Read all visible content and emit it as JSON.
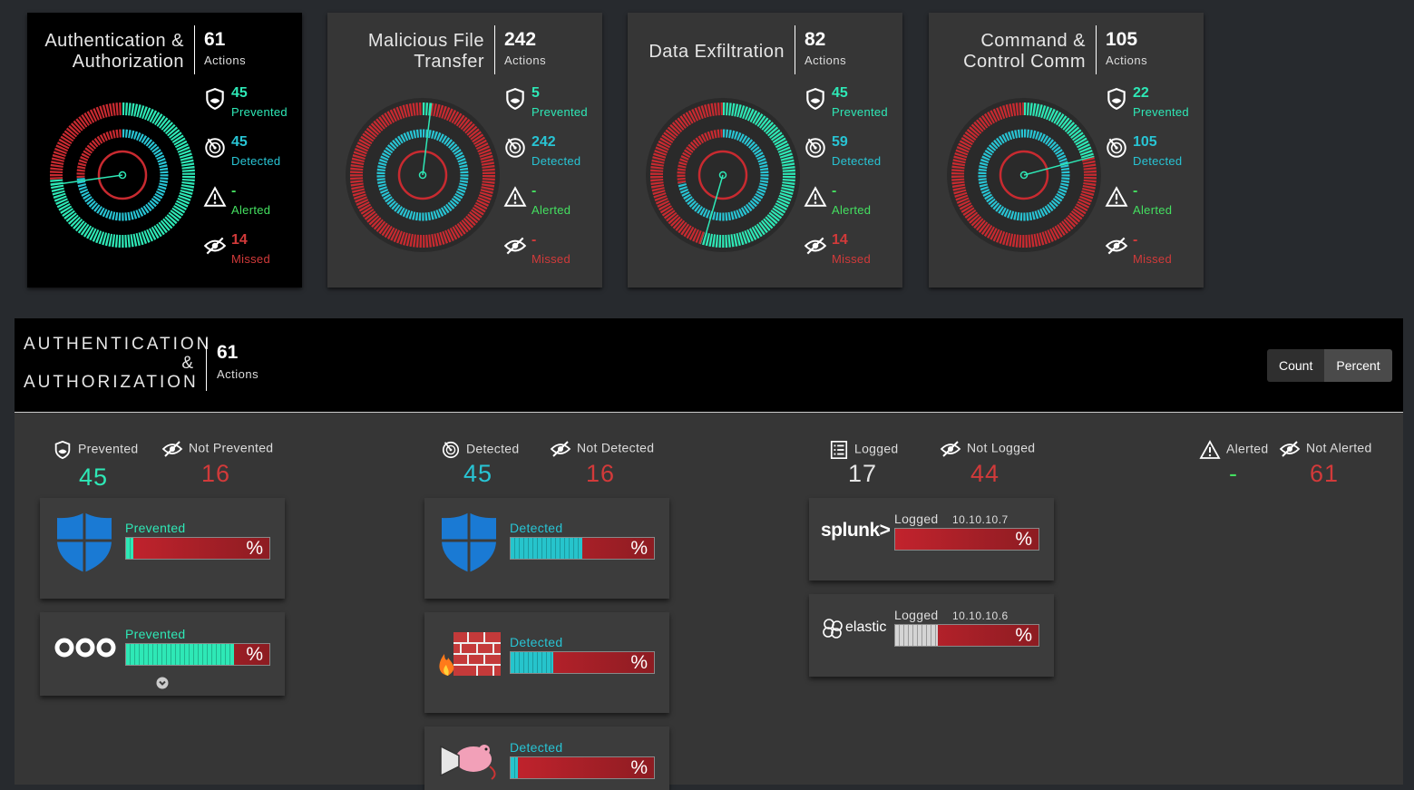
{
  "cards": [
    {
      "title_lines": [
        "Authentication &",
        "Authorization"
      ],
      "count": "61",
      "actions_label": "Actions",
      "prevented": "45",
      "prevented_label": "Prevented",
      "detected": "45",
      "detected_label": "Detected",
      "alerted": "-",
      "alerted_label": "Alerted",
      "missed": "14",
      "missed_label": "Missed",
      "selected": true,
      "outer_green_fraction": 0.74,
      "inner_teal_fraction": 0.74,
      "needle_angle_deg": 262
    },
    {
      "title_lines": [
        "Malicious File",
        "Transfer"
      ],
      "count": "242",
      "actions_label": "Actions",
      "prevented": "5",
      "prevented_label": "Prevented",
      "detected": "242",
      "detected_label": "Detected",
      "alerted": "-",
      "alerted_label": "Alerted",
      "missed": "-",
      "missed_label": "Missed",
      "selected": false,
      "outer_green_fraction": 0.02,
      "inner_teal_fraction": 1.0,
      "needle_angle_deg": 7
    },
    {
      "title_lines": [
        "Data Exfiltration"
      ],
      "count": "82",
      "actions_label": "Actions",
      "prevented": "45",
      "prevented_label": "Prevented",
      "detected": "59",
      "detected_label": "Detected",
      "alerted": "-",
      "alerted_label": "Alerted",
      "missed": "14",
      "missed_label": "Missed",
      "selected": false,
      "outer_green_fraction": 0.55,
      "inner_teal_fraction": 0.72,
      "needle_angle_deg": 196
    },
    {
      "title_lines": [
        "Command &",
        "Control Comm"
      ],
      "count": "105",
      "actions_label": "Actions",
      "prevented": "22",
      "prevented_label": "Prevented",
      "detected": "105",
      "detected_label": "Detected",
      "alerted": "-",
      "alerted_label": "Alerted",
      "missed": "-",
      "missed_label": "Missed",
      "selected": false,
      "outer_green_fraction": 0.21,
      "inner_teal_fraction": 1.0,
      "needle_angle_deg": 75
    }
  ],
  "colors": {
    "green": "#2ee8b6",
    "teal": "#28c4d4",
    "lime": "#44e060",
    "red": "#d23a3a"
  },
  "panel": {
    "title_lines": [
      "AUTHENTICATION",
      "&",
      "AUTHORIZATION"
    ],
    "count": "61",
    "actions_label": "Actions",
    "toggle": {
      "count": "Count",
      "percent": "Percent",
      "active": "Percent"
    },
    "columns": {
      "prevention": {
        "pos_label": "Prevented",
        "neg_label": "Not Prevented",
        "pos_value": "45",
        "neg_value": "16",
        "tiles": [
          {
            "logo": "windows-defender-shield-logo",
            "label": "Prevented",
            "pct_symbol": "%",
            "fill_fraction": 0.05
          },
          {
            "logo": "three-circles-logo",
            "label": "Prevented",
            "pct_symbol": "%",
            "fill_fraction": 0.75
          }
        ]
      },
      "detection": {
        "pos_label": "Detected",
        "neg_label": "Not Detected",
        "pos_value": "45",
        "neg_value": "16",
        "tiles": [
          {
            "logo": "windows-defender-shield-logo",
            "label": "Detected",
            "pct_symbol": "%",
            "fill_fraction": 0.5
          },
          {
            "logo": "firewall-logo",
            "label": "Detected",
            "pct_symbol": "%",
            "fill_fraction": 0.3
          },
          {
            "logo": "snort-pig-logo",
            "label": "Detected",
            "pct_symbol": "%",
            "fill_fraction": 0.05
          }
        ]
      },
      "logging": {
        "pos_label": "Logged",
        "neg_label": "Not Logged",
        "pos_value": "17",
        "neg_value": "44",
        "tiles": [
          {
            "logo_text": "splunk>",
            "label": "Logged",
            "ip": "10.10.10.7",
            "pct_symbol": "%",
            "fill_fraction": 0.0
          },
          {
            "logo_text": "elastic",
            "label": "Logged",
            "ip": "10.10.10.6",
            "pct_symbol": "%",
            "fill_fraction": 0.3
          }
        ]
      },
      "alerting": {
        "pos_label": "Alerted",
        "neg_label": "Not Alerted",
        "pos_value": "-",
        "neg_value": "61"
      }
    }
  }
}
